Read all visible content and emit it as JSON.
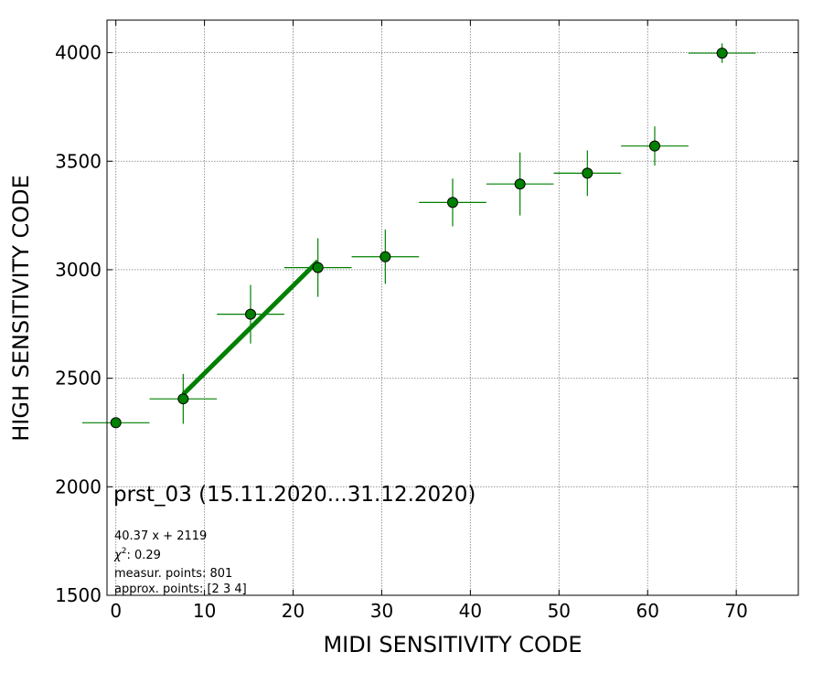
{
  "chart_data": {
    "type": "scatter",
    "xlabel": "MIDI SENSITIVITY CODE",
    "ylabel": "HIGH SENSITIVITY CODE",
    "xlim": [
      -1,
      77
    ],
    "ylim": [
      1500,
      4150
    ],
    "x_ticks": [
      0,
      10,
      20,
      30,
      40,
      50,
      60,
      70
    ],
    "y_ticks": [
      1500,
      2000,
      2500,
      3000,
      3500,
      4000
    ],
    "grid": true,
    "marker_color": "#008000",
    "fit_color": "#008000",
    "points": [
      {
        "x": 0.0,
        "y": 2295,
        "xerr": 3.8,
        "yerr": 0
      },
      {
        "x": 7.6,
        "y": 2405,
        "xerr": 3.8,
        "yerr": 115
      },
      {
        "x": 15.2,
        "y": 2795,
        "xerr": 3.8,
        "yerr": 135
      },
      {
        "x": 22.8,
        "y": 3010,
        "xerr": 3.8,
        "yerr": 135
      },
      {
        "x": 30.4,
        "y": 3060,
        "xerr": 3.8,
        "yerr": 125
      },
      {
        "x": 38.0,
        "y": 3310,
        "xerr": 3.8,
        "yerr": 110
      },
      {
        "x": 45.6,
        "y": 3395,
        "xerr": 3.8,
        "yerr": 145
      },
      {
        "x": 53.2,
        "y": 3445,
        "xerr": 3.8,
        "yerr": 105
      },
      {
        "x": 60.8,
        "y": 3570,
        "xerr": 3.8,
        "yerr": 90
      },
      {
        "x": 68.4,
        "y": 3998,
        "xerr": 3.8,
        "yerr": 45
      }
    ],
    "fit": {
      "slope": 40.37,
      "intercept": 2119,
      "x_range": [
        7.6,
        22.8
      ]
    },
    "annotations": {
      "title": "prst_03 (15.11.2020...31.12.2020)",
      "equation": "40.37 x + 2119",
      "chi2": "0.29",
      "measured_points": "measur. points: 801",
      "approx_points": "approx. points: [2 3 4]"
    }
  }
}
